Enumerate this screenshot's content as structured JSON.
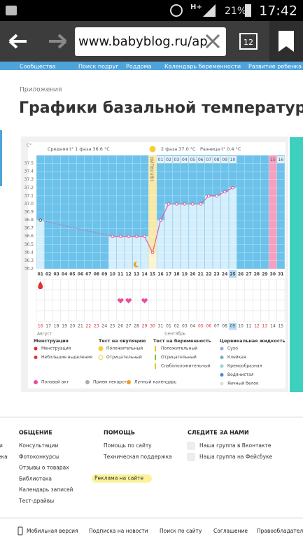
{
  "status_bar": {
    "network": "H+",
    "battery": "21%",
    "time": "17:42"
  },
  "browser": {
    "url": "www.babyblog.ru/ap",
    "tabs": "12"
  },
  "nav": [
    "Сообщества",
    "Поиск подруг",
    "Роддома",
    "Календарь беременности",
    "Развитие ребенка"
  ],
  "breadcrumb": "Приложения",
  "title": "Графики базальной температуры",
  "chart_data": {
    "type": "line",
    "y_label": "C°",
    "phase1": "Средняя t° 1 фаза 36.6 °C",
    "phase2": "2 фаза 37.0 °C",
    "difference": "Разница t° 0.4 °C",
    "ovulation_label": "ОВУЛЯЦИЯ",
    "ovulation_day": "15",
    "marked_day": "30",
    "highlight_day": "25",
    "highlight_date": "09",
    "line_color": "#e0609c",
    "plot_color": "#6cc2ea",
    "bar_color": "#d4eefb",
    "categories": [
      "01",
      "02",
      "03",
      "04",
      "05",
      "06",
      "07",
      "08",
      "09",
      "10",
      "11",
      "12",
      "13",
      "14",
      "15",
      "16",
      "17",
      "18",
      "19",
      "20",
      "21",
      "22",
      "23",
      "24",
      "25",
      "26",
      "27",
      "28",
      "29",
      "30",
      "31"
    ],
    "values": [
      36.8,
      null,
      null,
      null,
      null,
      null,
      null,
      null,
      null,
      36.6,
      36.6,
      36.6,
      36.6,
      36.6,
      36.4,
      36.8,
      37.0,
      37.0,
      37.0,
      37.0,
      37.0,
      37.1,
      37.1,
      37.15,
      37.2,
      null,
      null,
      null,
      null,
      null,
      null
    ],
    "phase2_days": [
      null,
      null,
      null,
      null,
      null,
      null,
      null,
      null,
      null,
      null,
      null,
      null,
      null,
      null,
      null,
      "01",
      "02",
      "03",
      "04",
      "05",
      "06",
      "07",
      "08",
      "09",
      "10",
      null,
      null,
      null,
      null,
      "15",
      "16"
    ],
    "dates": [
      "16",
      "17",
      "18",
      "19",
      "20",
      "21",
      "22",
      "23",
      "24",
      "25",
      "26",
      "27",
      "28",
      "29",
      "30",
      "31",
      "01",
      "02",
      "03",
      "04",
      "05",
      "06",
      "07",
      "08",
      "09",
      "10",
      "11",
      "12",
      "13",
      "14",
      "15"
    ],
    "red_dates": [
      "16",
      "22",
      "23",
      "29",
      "30",
      "05",
      "06",
      "12",
      "13"
    ],
    "months": [
      "Август",
      "Сентябрь"
    ],
    "menstruation_days": [
      "01"
    ],
    "intercourse_days": [
      "11",
      "12",
      "14"
    ],
    "moon_days": [
      "13"
    ],
    "ylim": [
      36.2,
      37.6
    ],
    "yticks": [
      36.2,
      36.3,
      36.4,
      36.5,
      36.6,
      36.7,
      36.8,
      36.9,
      {
        "value": 37,
        "label": "37.0"
      },
      37.1,
      37.2,
      37.3,
      37.4,
      37.5
    ]
  },
  "legend": [
    {
      "title": "Менструация",
      "items": [
        "Менструация",
        "Небольшие выделения"
      ]
    },
    {
      "title": "Тест на овуляцию",
      "items": [
        "Положительный",
        "Отрицательный"
      ]
    },
    {
      "title": "Тест на беременность",
      "items": [
        "Положительный",
        "Отрицательный",
        "Слабоположительный"
      ]
    },
    {
      "title": "Цервикальная жидкость",
      "items": [
        "Сухо",
        "Клейкая",
        "Кремообразная",
        "Водянистая",
        "Яичный белок"
      ]
    }
  ],
  "legend_bottom": [
    "Половой акт",
    "Прием лекарств",
    "Лунный календарь"
  ],
  "footer": {
    "columns": [
      {
        "title": "ОБЩЕНИЕ",
        "items": [
          "Консультации",
          "Фотоконкурсы",
          "Отзывы о товарах",
          "Библиотека",
          "Календарь записей",
          "Тест-драйвы"
        ]
      },
      {
        "title": "ПОМОЩЬ",
        "items": [
          "Помощь по сайту",
          "Техническая поддержка",
          "Реклама на сайте"
        ]
      },
      {
        "title": "СЛЕДИТЕ ЗА НАМИ",
        "items": [
          "Наша группа в Вконтакте",
          "Наша группа на Фейсбуке"
        ]
      }
    ],
    "cut_left": [
      "и",
      "ека"
    ],
    "bottom": [
      "Мобильная версия",
      "Подписка на новости",
      "Поиск по сайту",
      "Соглашение",
      "Правообладателя"
    ]
  }
}
